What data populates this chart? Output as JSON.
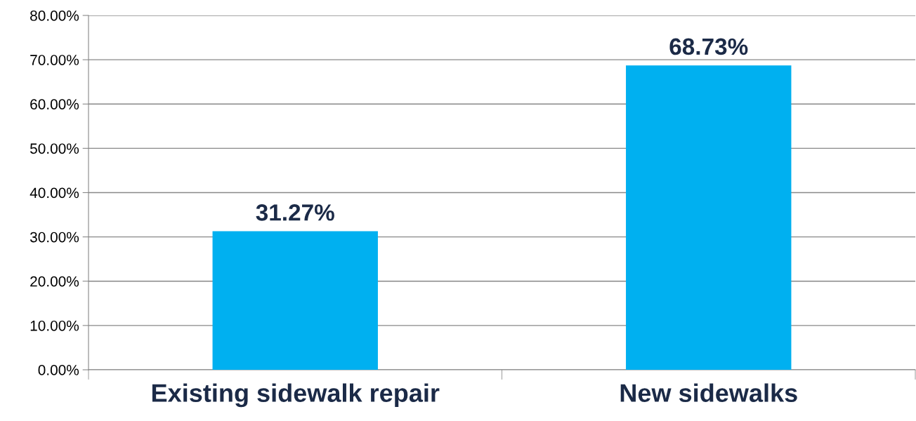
{
  "chart_data": {
    "type": "bar",
    "categories": [
      "Existing sidewalk repair",
      "New sidewalks"
    ],
    "values": [
      31.27,
      68.73
    ],
    "color": "#00b0f0",
    "value_labels": [
      "31.27%",
      "68.73%"
    ],
    "ylim": [
      0,
      80
    ],
    "yticks": [
      {
        "value": 0,
        "label": "0.00%"
      },
      {
        "value": 10,
        "label": "10.00%"
      },
      {
        "value": 20,
        "label": "20.00%"
      },
      {
        "value": 30,
        "label": "30.00%"
      },
      {
        "value": 40,
        "label": "40.00%"
      },
      {
        "value": 50,
        "label": "50.00%"
      },
      {
        "value": 60,
        "label": "60.00%"
      },
      {
        "value": 70,
        "label": "70.00%"
      },
      {
        "value": 80,
        "label": "80.00%"
      }
    ],
    "grid": "y",
    "legend": false
  }
}
